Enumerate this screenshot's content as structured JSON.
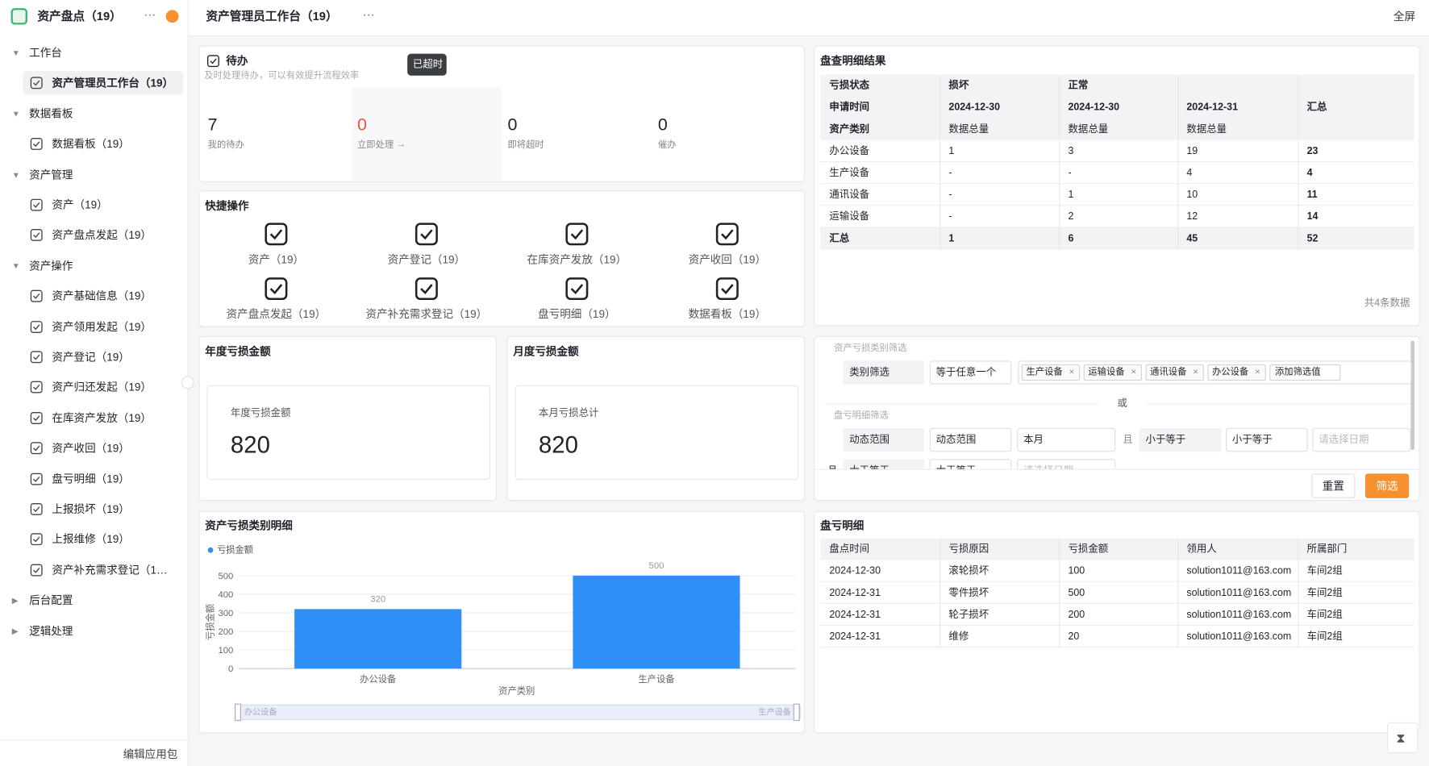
{
  "sidebar": {
    "app_title": "资产盘点（19）",
    "groups": [
      {
        "label": "工作台",
        "children": [
          "资产管理员工作台（19）"
        ]
      },
      {
        "label": "数据看板",
        "children": [
          "数据看板（19）"
        ]
      },
      {
        "label": "资产管理",
        "children": [
          "资产（19）",
          "资产盘点发起（19）"
        ]
      },
      {
        "label": "资产操作",
        "children": [
          "资产基础信息（19）",
          "资产领用发起（19）",
          "资产登记（19）",
          "资产归还发起（19）",
          "在库资产发放（19）",
          "资产收回（19）",
          "盘亏明细（19）",
          "上报损坏（19）",
          "上报维修（19）",
          "资产补充需求登记（1…"
        ]
      },
      {
        "label": "后台配置"
      },
      {
        "label": "逻辑处理"
      }
    ],
    "footer": "编辑应用包"
  },
  "header": {
    "title": "资产管理员工作台（19）",
    "fullscreen": "全屏"
  },
  "todo": {
    "title": "待办",
    "subtitle": "及时处理待办，可以有效提升流程效率",
    "tooltip": "已超时",
    "stats": [
      {
        "value": "7",
        "label": "我的待办"
      },
      {
        "value": "0",
        "label": "立即处理"
      },
      {
        "value": "0",
        "label": "即将超时"
      },
      {
        "value": "0",
        "label": "催办"
      }
    ]
  },
  "quick_actions": {
    "title": "快捷操作",
    "items": [
      "资产（19）",
      "资产登记（19）",
      "在库资产发放（19）",
      "资产收回（19）",
      "资产盘点发起（19）",
      "资产补充需求登记（19）",
      "盘亏明细（19）",
      "数据看板（19）"
    ]
  },
  "annual_loss": {
    "title": "年度亏损金额",
    "label": "年度亏损金额",
    "value": "820"
  },
  "monthly_loss": {
    "title": "月度亏损金额",
    "label": "本月亏损总计",
    "value": "820"
  },
  "result": {
    "title": "盘查明细结果",
    "status_label": "亏损状态",
    "date_label": "申请时间",
    "category_label": "资产类别",
    "total_label": "汇总",
    "groups": [
      {
        "status": "损坏",
        "dates": [
          {
            "date": "2024-12-30",
            "measure": "数据总量"
          }
        ]
      },
      {
        "status": "正常",
        "dates": [
          {
            "date": "2024-12-30",
            "measure": "数据总量"
          },
          {
            "date": "2024-12-31",
            "measure": "数据总量"
          }
        ]
      }
    ],
    "rows": [
      [
        "办公设备",
        "1",
        "3",
        "19",
        "23"
      ],
      [
        "生产设备",
        "-",
        "-",
        "4",
        "4"
      ],
      [
        "通讯设备",
        "-",
        "1",
        "10",
        "11"
      ],
      [
        "运输设备",
        "-",
        "2",
        "12",
        "14"
      ],
      [
        "汇总",
        "1",
        "6",
        "45",
        "52"
      ]
    ],
    "footer": "共4条数据"
  },
  "filter": {
    "section1": {
      "label": "资产亏损类别筛选",
      "field": "类别筛选",
      "operator": "等于任意一个",
      "tags": [
        "生产设备",
        "运输设备",
        "通讯设备",
        "办公设备"
      ],
      "add": "添加筛选值"
    },
    "or": "或",
    "section2": {
      "label": "盘亏明细筛选",
      "row1": {
        "field": "动态范围",
        "mode": "动态范围",
        "range": "本月",
        "and": "且",
        "field2": "小于等于",
        "operator2": "小于等于",
        "date": "请选择日期"
      },
      "row2": {
        "and": "且",
        "field": "大于等于",
        "operator": "大于等于",
        "date": "请选择日期"
      }
    },
    "reset": "重置",
    "submit": "筛选"
  },
  "chart_data": {
    "type": "bar",
    "title": "资产亏损类别明细",
    "categories": [
      "办公设备",
      "生产设备"
    ],
    "series": [
      {
        "name": "亏损金额",
        "color": "#2f8ff5",
        "values": [
          320,
          500
        ]
      }
    ],
    "xlabel": "资产类别",
    "ylabel": "亏损金额",
    "ylim": [
      0,
      500
    ],
    "yticks": [
      0,
      100,
      200,
      300,
      400,
      500
    ],
    "grid": true
  },
  "loss_table": {
    "title": "盘亏明细",
    "columns": [
      "盘点时间",
      "亏损原因",
      "亏损金额",
      "领用人",
      "所属部门"
    ],
    "rows": [
      [
        "2024-12-30",
        "滚轮损坏",
        "100",
        "solution1011@163.com",
        "车间2组"
      ],
      [
        "2024-12-31",
        "零件损坏",
        "500",
        "solution1011@163.com",
        "车间2组"
      ],
      [
        "2024-12-31",
        "轮子损坏",
        "200",
        "solution1011@163.com",
        "车间2组"
      ],
      [
        "2024-12-31",
        "维修",
        "20",
        "solution1011@163.com",
        "车间2组"
      ]
    ]
  }
}
